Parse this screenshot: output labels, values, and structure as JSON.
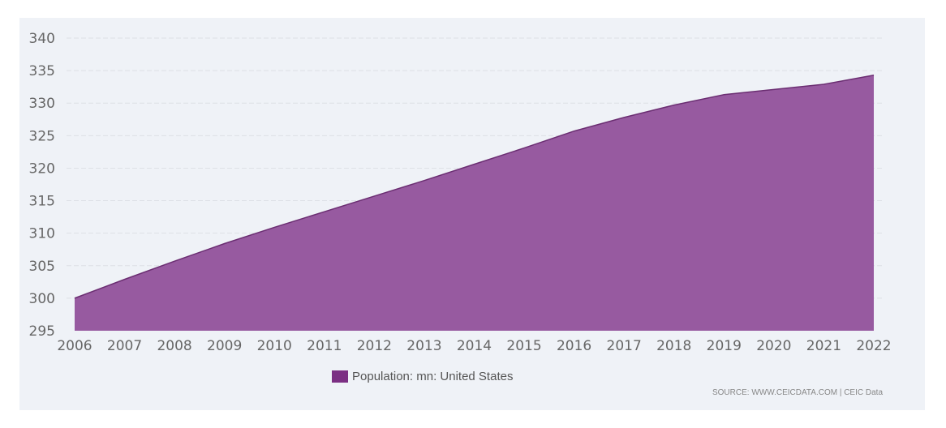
{
  "chart_data": {
    "type": "area",
    "x": [
      2006,
      2007,
      2008,
      2009,
      2010,
      2011,
      2012,
      2013,
      2014,
      2015,
      2016,
      2017,
      2018,
      2019,
      2020,
      2021,
      2022
    ],
    "series": [
      {
        "name": "Population: mn: United States",
        "values": [
          300.0,
          302.9,
          305.7,
          308.4,
          310.9,
          313.3,
          315.7,
          318.1,
          320.6,
          323.1,
          325.7,
          327.8,
          329.7,
          331.3,
          332.1,
          332.9,
          334.3
        ],
        "color": "#975aa0",
        "line_color": "#6b2e72"
      }
    ],
    "ylim": [
      295,
      340
    ],
    "yticks": [
      295,
      300,
      305,
      310,
      315,
      320,
      325,
      330,
      335,
      340
    ],
    "grid": true,
    "legend_position": "bottom",
    "legend_color": "#7b2f83"
  },
  "source": "SOURCE: WWW.CEICDATA.COM | CEIC Data"
}
